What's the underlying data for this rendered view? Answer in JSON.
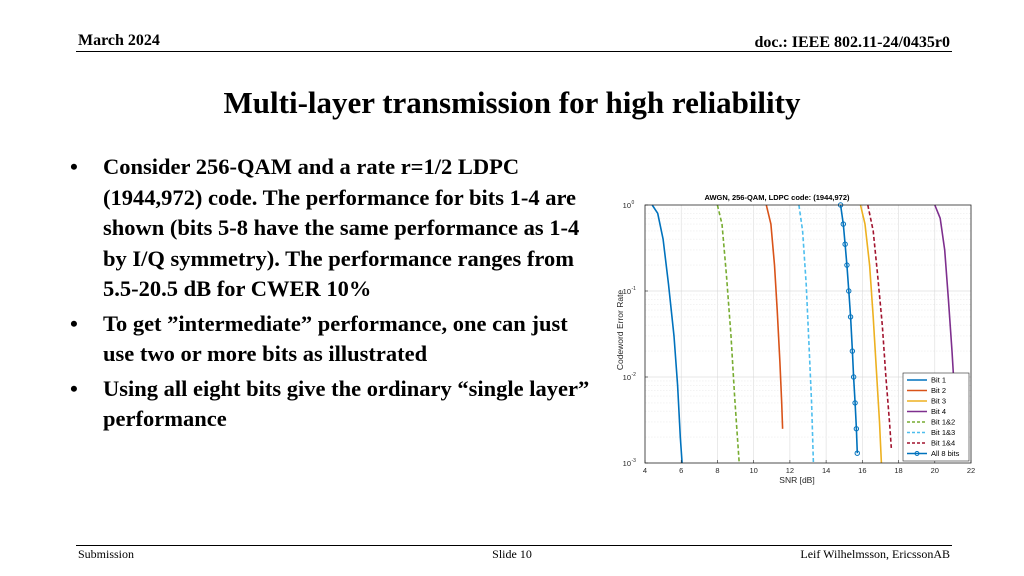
{
  "header": {
    "date": "March 2024",
    "doc": "doc.: IEEE 802.11-24/0435r0"
  },
  "title": "Multi-layer transmission for high reliability",
  "bullets": [
    "Consider 256-QAM and a rate r=1/2 LDPC (1944,972) code. The performance  for bits 1-4 are shown (bits 5-8 have the same performance as 1-4 by I/Q symmetry). The performance ranges from 5.5-20.5 dB for CWER 10%",
    "To get ”intermediate” performance, one can just use two or more bits as illustrated",
    "Using all eight bits give the ordinary “single layer” performance"
  ],
  "bullet_glyph": "•",
  "footer": {
    "left": "Submission",
    "center": "Slide 10",
    "right": "Leif Wilhelmsson, EricssonAB"
  },
  "chart_data": {
    "type": "line",
    "title": "AWGN, 256-QAM, LDPC code: (1944,972)",
    "xlabel": "SNR [dB]",
    "ylabel": "Codeword Error Rate",
    "xlim": [
      4,
      22
    ],
    "ylim": [
      0.001,
      1
    ],
    "yscale": "log",
    "xticks": [
      "4",
      "6",
      "8",
      "10",
      "12",
      "14",
      "16",
      "18",
      "20",
      "22"
    ],
    "yticks": [
      {
        "value": 1,
        "base": "10",
        "exp": "0"
      },
      {
        "value": 0.1,
        "base": "10",
        "exp": "-1"
      },
      {
        "value": 0.01,
        "base": "10",
        "exp": "-2"
      },
      {
        "value": 0.001,
        "base": "10",
        "exp": "-3"
      }
    ],
    "grid": true,
    "legend_position": "bottom-right",
    "series": [
      {
        "name": "Bit 1",
        "color": "#0072BD",
        "dash": "solid",
        "marker": false,
        "x": [
          4.4,
          4.7,
          5.0,
          5.3,
          5.6,
          5.8,
          5.95,
          6.05
        ],
        "y": [
          1,
          0.8,
          0.4,
          0.12,
          0.03,
          0.008,
          0.002,
          0.001
        ]
      },
      {
        "name": "Bit 2",
        "color": "#D95319",
        "dash": "solid",
        "marker": false,
        "x": [
          10.7,
          10.95,
          11.15,
          11.3,
          11.45,
          11.55,
          11.6
        ],
        "y": [
          1,
          0.6,
          0.2,
          0.06,
          0.015,
          0.005,
          0.0025
        ]
      },
      {
        "name": "Bit 3",
        "color": "#EDB120",
        "dash": "solid",
        "marker": false,
        "x": [
          15.9,
          16.15,
          16.4,
          16.6,
          16.8,
          16.95,
          17.05
        ],
        "y": [
          1,
          0.6,
          0.2,
          0.05,
          0.01,
          0.003,
          0.001
        ]
      },
      {
        "name": "Bit 4",
        "color": "#7E2F8E",
        "dash": "solid",
        "marker": false,
        "x": [
          20.0,
          20.3,
          20.55,
          20.75,
          20.95,
          21.1,
          21.25
        ],
        "y": [
          1,
          0.7,
          0.3,
          0.08,
          0.02,
          0.006,
          0.002
        ]
      },
      {
        "name": "Bit 1&2",
        "color": "#77AC30",
        "dash": "dashed",
        "marker": false,
        "x": [
          8.0,
          8.25,
          8.5,
          8.75,
          8.95,
          9.1,
          9.2
        ],
        "y": [
          1,
          0.6,
          0.15,
          0.03,
          0.006,
          0.002,
          0.001
        ]
      },
      {
        "name": "Bit 1&3",
        "color": "#4DBEEE",
        "dash": "dashed",
        "marker": false,
        "x": [
          12.5,
          12.7,
          12.9,
          13.05,
          13.2,
          13.3
        ],
        "y": [
          1,
          0.5,
          0.12,
          0.025,
          0.005,
          0.001
        ]
      },
      {
        "name": "Bit 1&4",
        "color": "#A2142F",
        "dash": "dashed",
        "marker": false,
        "x": [
          16.3,
          16.6,
          16.85,
          17.1,
          17.3,
          17.5,
          17.6
        ],
        "y": [
          1,
          0.5,
          0.15,
          0.04,
          0.01,
          0.003,
          0.0015
        ]
      },
      {
        "name": "All 8 bits",
        "color": "#0072BD",
        "dash": "solid",
        "marker": true,
        "x": [
          14.8,
          14.95,
          15.05,
          15.15,
          15.25,
          15.35,
          15.45,
          15.52,
          15.6,
          15.67,
          15.72
        ],
        "y": [
          1,
          0.6,
          0.35,
          0.2,
          0.1,
          0.05,
          0.02,
          0.01,
          0.005,
          0.0025,
          0.0013
        ]
      }
    ]
  }
}
